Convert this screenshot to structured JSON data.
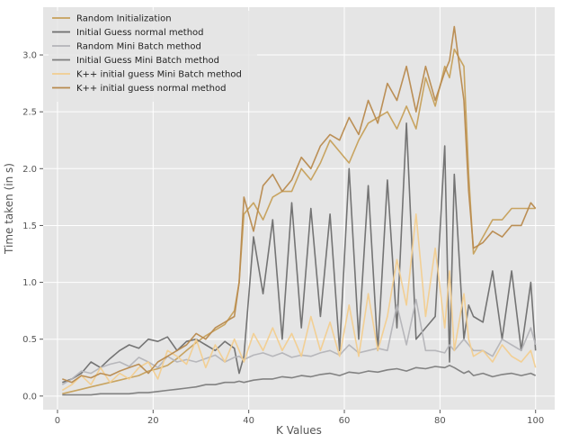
{
  "chart_data": {
    "type": "line",
    "xlabel": "K Values",
    "ylabel": "Time taken (in s)",
    "xlim": [
      -3,
      104
    ],
    "ylim": [
      -0.12,
      3.42
    ],
    "xticks": [
      0,
      20,
      40,
      60,
      80,
      100
    ],
    "yticks": [
      0.0,
      0.5,
      1.0,
      1.5,
      2.0,
      2.5,
      3.0
    ],
    "grid": true,
    "legend_position": "top-left",
    "x": [
      1,
      3,
      5,
      7,
      9,
      11,
      13,
      15,
      17,
      19,
      21,
      23,
      25,
      27,
      29,
      31,
      33,
      35,
      37,
      38,
      39,
      41,
      43,
      45,
      47,
      49,
      51,
      53,
      55,
      57,
      59,
      61,
      63,
      65,
      67,
      69,
      71,
      73,
      75,
      77,
      79,
      81,
      82,
      83,
      85,
      86,
      87,
      89,
      91,
      93,
      95,
      97,
      99,
      100
    ],
    "series": [
      {
        "name": "Random Initialization",
        "color": "#c6a05a",
        "values": [
          0.02,
          0.04,
          0.06,
          0.08,
          0.1,
          0.12,
          0.14,
          0.16,
          0.18,
          0.22,
          0.24,
          0.27,
          0.33,
          0.4,
          0.47,
          0.53,
          0.58,
          0.63,
          0.75,
          1.0,
          1.6,
          1.7,
          1.55,
          1.75,
          1.8,
          1.8,
          2.0,
          1.9,
          2.05,
          2.25,
          2.15,
          2.05,
          2.25,
          2.4,
          2.45,
          2.5,
          2.35,
          2.55,
          2.35,
          2.8,
          2.55,
          2.9,
          2.8,
          3.05,
          2.9,
          1.95,
          1.25,
          1.4,
          1.55,
          1.55,
          1.65,
          1.65,
          1.65,
          1.65
        ]
      },
      {
        "name": "Initial Guess normal method",
        "color": "#6e6e6e",
        "values": [
          0.12,
          0.15,
          0.2,
          0.3,
          0.25,
          0.33,
          0.4,
          0.45,
          0.42,
          0.5,
          0.48,
          0.52,
          0.4,
          0.48,
          0.5,
          0.45,
          0.4,
          0.48,
          0.42,
          0.2,
          0.35,
          1.4,
          0.9,
          1.55,
          0.5,
          1.7,
          0.6,
          1.65,
          0.7,
          1.6,
          0.4,
          2.0,
          0.5,
          1.85,
          0.4,
          1.9,
          0.6,
          2.4,
          0.5,
          0.6,
          0.7,
          2.2,
          0.3,
          1.95,
          0.5,
          0.8,
          0.7,
          0.65,
          1.1,
          0.5,
          1.1,
          0.4,
          1.0,
          0.4
        ]
      },
      {
        "name": "Random Mini Batch method",
        "color": "#b4b4b8",
        "values": [
          0.1,
          0.15,
          0.22,
          0.2,
          0.25,
          0.28,
          0.3,
          0.26,
          0.34,
          0.3,
          0.25,
          0.35,
          0.3,
          0.32,
          0.3,
          0.33,
          0.36,
          0.3,
          0.34,
          0.35,
          0.32,
          0.36,
          0.38,
          0.35,
          0.38,
          0.34,
          0.36,
          0.35,
          0.38,
          0.4,
          0.36,
          0.45,
          0.38,
          0.4,
          0.42,
          0.4,
          0.8,
          0.45,
          0.85,
          0.4,
          0.4,
          0.38,
          0.45,
          0.4,
          0.5,
          0.45,
          0.4,
          0.4,
          0.35,
          0.5,
          0.45,
          0.4,
          0.6,
          0.45
        ]
      },
      {
        "name": "Initial Guess Mini Batch method",
        "color": "#7c7c7c",
        "values": [
          0.01,
          0.01,
          0.01,
          0.01,
          0.02,
          0.02,
          0.02,
          0.02,
          0.03,
          0.03,
          0.04,
          0.05,
          0.06,
          0.07,
          0.08,
          0.1,
          0.1,
          0.12,
          0.12,
          0.13,
          0.12,
          0.14,
          0.15,
          0.15,
          0.17,
          0.16,
          0.18,
          0.17,
          0.19,
          0.2,
          0.18,
          0.21,
          0.2,
          0.22,
          0.21,
          0.23,
          0.24,
          0.22,
          0.25,
          0.24,
          0.26,
          0.25,
          0.27,
          0.25,
          0.2,
          0.22,
          0.18,
          0.2,
          0.17,
          0.19,
          0.2,
          0.18,
          0.2,
          0.18
        ]
      },
      {
        "name": "K++ initial guess Mini Batch method",
        "color": "#f2cd8f",
        "values": [
          0.05,
          0.1,
          0.18,
          0.1,
          0.25,
          0.12,
          0.2,
          0.15,
          0.25,
          0.3,
          0.15,
          0.4,
          0.35,
          0.28,
          0.5,
          0.25,
          0.45,
          0.3,
          0.5,
          0.4,
          0.3,
          0.55,
          0.4,
          0.6,
          0.4,
          0.55,
          0.35,
          0.7,
          0.4,
          0.65,
          0.35,
          0.8,
          0.35,
          0.9,
          0.4,
          0.7,
          1.2,
          0.8,
          1.6,
          0.7,
          1.3,
          0.6,
          1.1,
          0.4,
          0.9,
          0.5,
          0.35,
          0.4,
          0.3,
          0.45,
          0.35,
          0.3,
          0.4,
          0.25
        ]
      },
      {
        "name": "K++ initial guess normal method",
        "color": "#b88a4e",
        "values": [
          0.15,
          0.12,
          0.18,
          0.16,
          0.2,
          0.18,
          0.22,
          0.25,
          0.28,
          0.2,
          0.3,
          0.35,
          0.4,
          0.45,
          0.55,
          0.5,
          0.6,
          0.65,
          0.7,
          1.0,
          1.75,
          1.45,
          1.85,
          1.95,
          1.8,
          1.9,
          2.1,
          2.0,
          2.2,
          2.3,
          2.25,
          2.45,
          2.3,
          2.6,
          2.4,
          2.75,
          2.6,
          2.9,
          2.5,
          2.9,
          2.6,
          2.85,
          2.95,
          3.25,
          2.6,
          1.8,
          1.3,
          1.35,
          1.45,
          1.4,
          1.5,
          1.5,
          1.7,
          1.65
        ]
      }
    ]
  }
}
